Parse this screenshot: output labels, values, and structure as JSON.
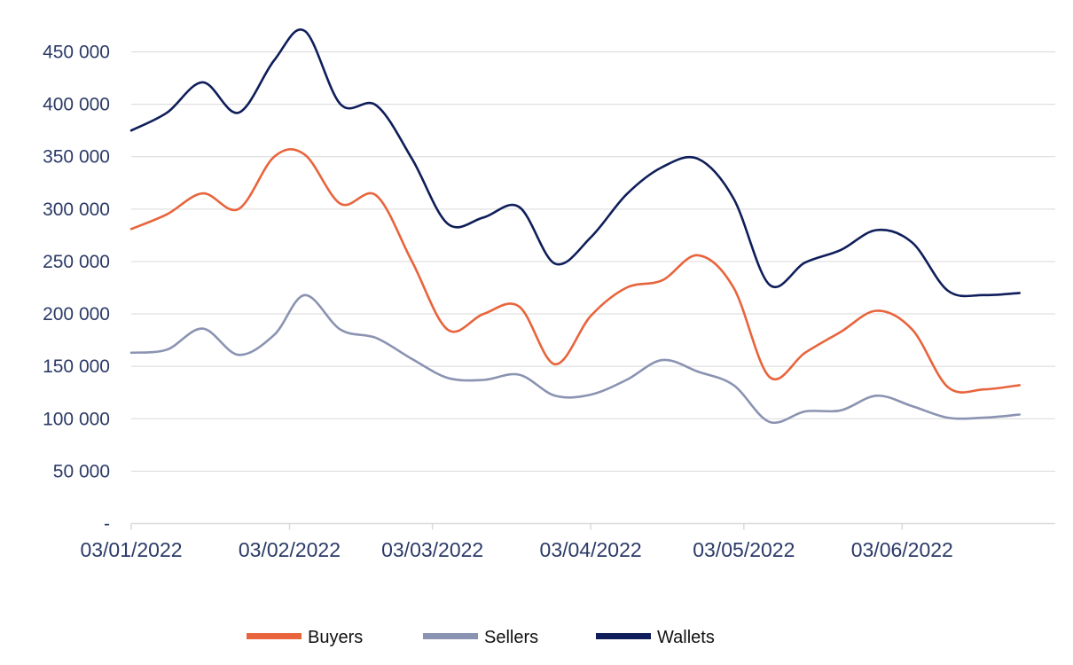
{
  "chart_data": {
    "type": "line",
    "title": "",
    "xlabel": "",
    "ylabel": "",
    "ylim": [
      0,
      450000
    ],
    "y_ticks": [
      0,
      50000,
      100000,
      150000,
      200000,
      250000,
      300000,
      350000,
      400000,
      450000
    ],
    "y_tick_labels": [
      "-",
      "50 000",
      "100 000",
      "150 000",
      "200 000",
      "250 000",
      "300 000",
      "350 000",
      "400 000",
      "450 000"
    ],
    "x_ticks": [
      "2022-01-03",
      "2022-02-03",
      "2022-03-03",
      "2022-04-03",
      "2022-05-03",
      "2022-06-03"
    ],
    "x_tick_labels": [
      "03/01/2022",
      "03/02/2022",
      "03/03/2022",
      "03/04/2022",
      "03/05/2022",
      "03/06/2022"
    ],
    "x_range": [
      "2022-01-03",
      "2022-07-03"
    ],
    "grid": "horizontal",
    "legend_position": "bottom",
    "x": [
      "2022-01-03",
      "2022-01-10",
      "2022-01-17",
      "2022-01-24",
      "2022-01-31",
      "2022-02-06",
      "2022-02-13",
      "2022-02-20",
      "2022-02-27",
      "2022-03-06",
      "2022-03-13",
      "2022-03-20",
      "2022-03-27",
      "2022-04-03",
      "2022-04-10",
      "2022-04-17",
      "2022-04-24",
      "2022-05-01",
      "2022-05-08",
      "2022-05-15",
      "2022-05-22",
      "2022-05-29",
      "2022-06-05",
      "2022-06-12",
      "2022-06-19",
      "2022-06-26"
    ],
    "series": [
      {
        "name": "Buyers",
        "color": "#e8643c",
        "values": [
          281000,
          295000,
          315000,
          300000,
          350000,
          352000,
          305000,
          313000,
          250000,
          185000,
          200000,
          207000,
          152000,
          198000,
          225000,
          232000,
          256000,
          225000,
          140000,
          163000,
          183000,
          203000,
          185000,
          130000,
          128000,
          132000
        ]
      },
      {
        "name": "Sellers",
        "color": "#8a93b1",
        "values": [
          163000,
          166000,
          186000,
          161000,
          180000,
          218000,
          185000,
          177000,
          157000,
          139000,
          137000,
          142000,
          122000,
          123000,
          137000,
          156000,
          145000,
          132000,
          97000,
          107000,
          108000,
          122000,
          112000,
          101000,
          101000,
          104000
        ]
      },
      {
        "name": "Wallets",
        "color": "#0f1e5a",
        "values": [
          375000,
          392000,
          421000,
          392000,
          442000,
          470000,
          400000,
          399000,
          348000,
          286000,
          292000,
          302000,
          248000,
          273000,
          314000,
          340000,
          348000,
          310000,
          228000,
          249000,
          261000,
          280000,
          268000,
          222000,
          218000,
          220000
        ]
      }
    ]
  }
}
